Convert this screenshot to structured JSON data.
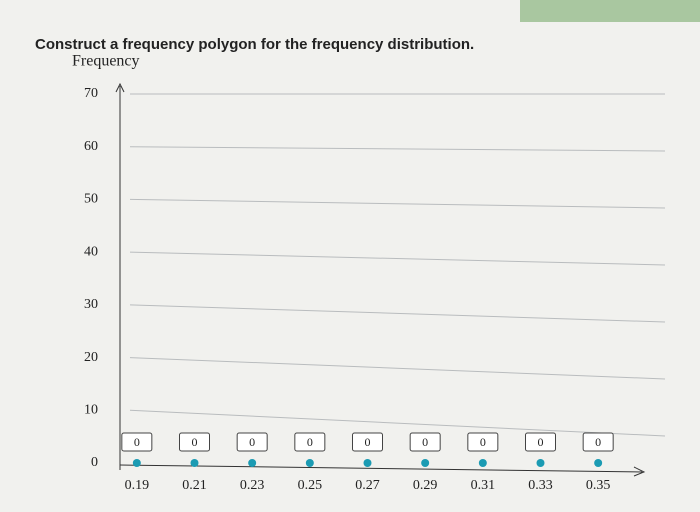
{
  "chart_data": {
    "type": "scatter",
    "title": "Construct a frequency polygon for the frequency distribution.",
    "y_label": "Frequency",
    "x": [
      0.19,
      0.21,
      0.23,
      0.25,
      0.27,
      0.29,
      0.31,
      0.33,
      0.35
    ],
    "series": [
      {
        "color": "#1b9bb3",
        "values": [
          0,
          0,
          0,
          0,
          0,
          0,
          0,
          0,
          0
        ]
      }
    ],
    "xlim": [
      0.18,
      0.36
    ],
    "ylim": [
      0,
      70
    ],
    "yticks": [
      0,
      10,
      20,
      30,
      40,
      50,
      60,
      70
    ],
    "grid": true
  }
}
